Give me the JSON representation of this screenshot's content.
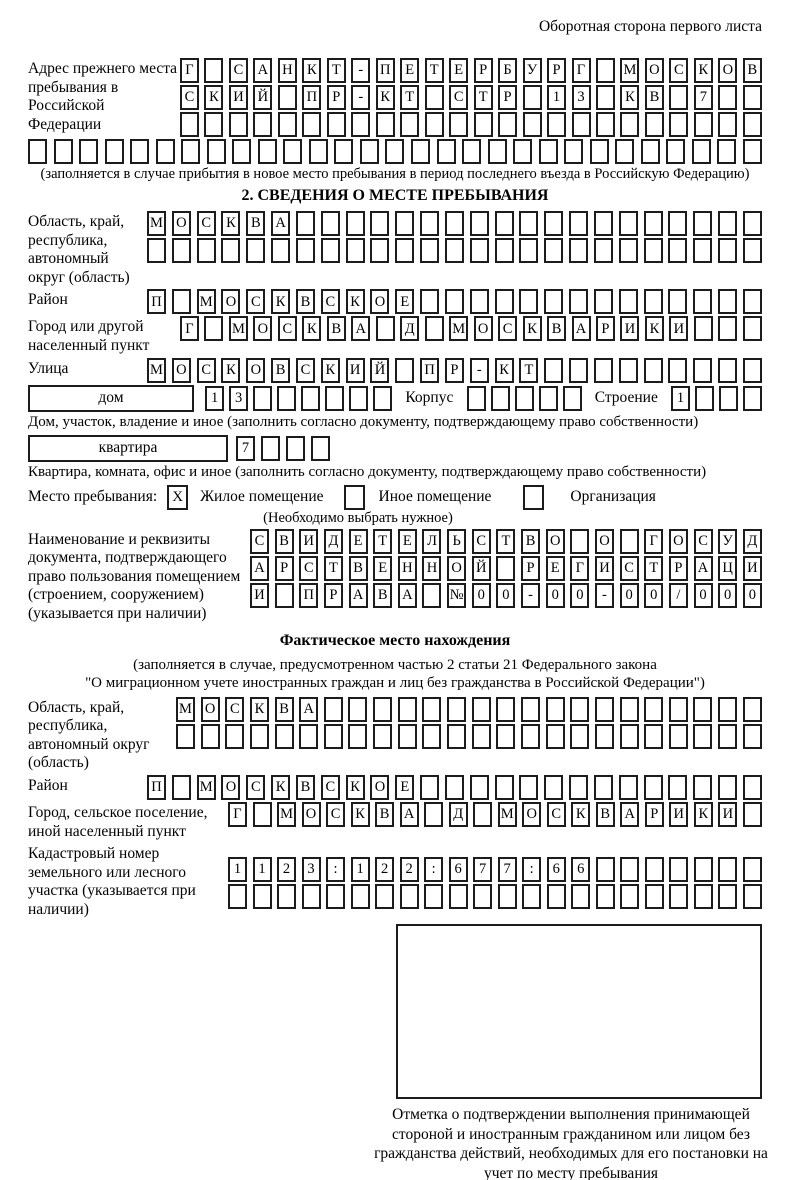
{
  "header": {
    "note": "Оборотная сторона первого листа"
  },
  "prev_address": {
    "label": "Адрес прежнего места пребывания в Российской Федерации",
    "row1": {
      "count": 24,
      "value": "Г САНКТ-ПЕТЕРБУРГ МОСКОВ"
    },
    "row2": {
      "count": 24,
      "value": "СКИЙ ПР-КТ СТР 13 КВ 7"
    },
    "row3": {
      "count": 24,
      "value": ""
    },
    "row4": {
      "count": 29,
      "value": ""
    },
    "note": "(заполняется в случае прибытия в новое место пребывания в период последнего въезда в Российскую Федерацию)"
  },
  "section2": {
    "title": "2. СВЕДЕНИЯ О МЕСТЕ ПРЕБЫВАНИЯ",
    "region": {
      "label": "Область, край, республика, автономный округ (область)",
      "row1": {
        "count": 25,
        "value": "МОСКВА"
      },
      "row2": {
        "count": 25,
        "value": ""
      }
    },
    "district": {
      "label": "Район",
      "row": {
        "count": 25,
        "value": "П МОСКВСКОЕ"
      }
    },
    "city": {
      "label": "Город или другой населенный пункт",
      "row": {
        "count": 24,
        "value": "Г МОСКВА Д МОСКВАРИКИ"
      }
    },
    "street": {
      "label": "Улица",
      "row": {
        "count": 25,
        "value": "МОСКОВСКИЙ ПР-КТ"
      }
    },
    "house": {
      "box_label": "дом",
      "cells": {
        "count": 8,
        "value": "13"
      },
      "korpus_label": "Корпус",
      "korpus_cells": {
        "count": 5,
        "value": ""
      },
      "stroenie_label": "Строение",
      "stroenie_cells": {
        "count": 4,
        "value": "1"
      },
      "note": "Дом, участок, владение и иное (заполнить согласно документу, подтверждающему право собственности)"
    },
    "apartment": {
      "box_label": "квартира",
      "cells": {
        "count": 4,
        "value": "7"
      },
      "note": "Квартира, комната, офис и иное (заполнить согласно документу, подтверждающему право собственности)"
    },
    "stay_type": {
      "label": "Место пребывания:",
      "options": [
        {
          "label": "Жилое помещение",
          "checked": "X"
        },
        {
          "label": "Иное помещение",
          "checked": ""
        },
        {
          "label": "Организация",
          "checked": ""
        }
      ],
      "note": "(Необходимо выбрать нужное)"
    },
    "document": {
      "label": "Наименование и реквизиты документа, подтверждающего право пользования помещением (строением, сооружением) (указывается при наличии)",
      "row1": {
        "count": 21,
        "value": "СВИДЕТЕЛЬСТВО О ГОСУД"
      },
      "row2": {
        "count": 21,
        "value": "АРСТВЕННОЙ РЕГИСТРАЦИ"
      },
      "row3": {
        "count": 21,
        "value": "И ПРАВА №00-00-00/000"
      }
    }
  },
  "actual_location": {
    "title": "Фактическое место нахождения",
    "note_line1": "(заполняется в случае, предусмотренном частью 2 статьи 21 Федерального закона",
    "note_line2": "\"О миграционном учете иностранных граждан и лиц без гражданства в Российской Федерации\")",
    "region": {
      "label": "Область, край, республика, автономный округ (область)",
      "row1": {
        "count": 24,
        "value": "МОСКВА"
      },
      "row2": {
        "count": 24,
        "value": ""
      }
    },
    "district": {
      "label": "Район",
      "row": {
        "count": 25,
        "value": "П МОСКВСКОЕ"
      }
    },
    "city": {
      "label": "Город, сельское поселение, иной населенный пункт",
      "row": {
        "count": 22,
        "value": "Г МОСКВА Д МОСКВАРИКИ"
      }
    },
    "cadastral": {
      "label": "Кадастровый номер земельного или лесного участка (указывается при наличии)",
      "row1": {
        "count": 22,
        "value": "1123:122:677:66"
      },
      "row2": {
        "count": 22,
        "value": ""
      }
    },
    "stamp_caption": "Отметка о подтверждении выполнения принимающей стороной и иностранным гражданином или лицом без гражданства действий, необходимых для его постановки на учет по месту пребывания"
  }
}
